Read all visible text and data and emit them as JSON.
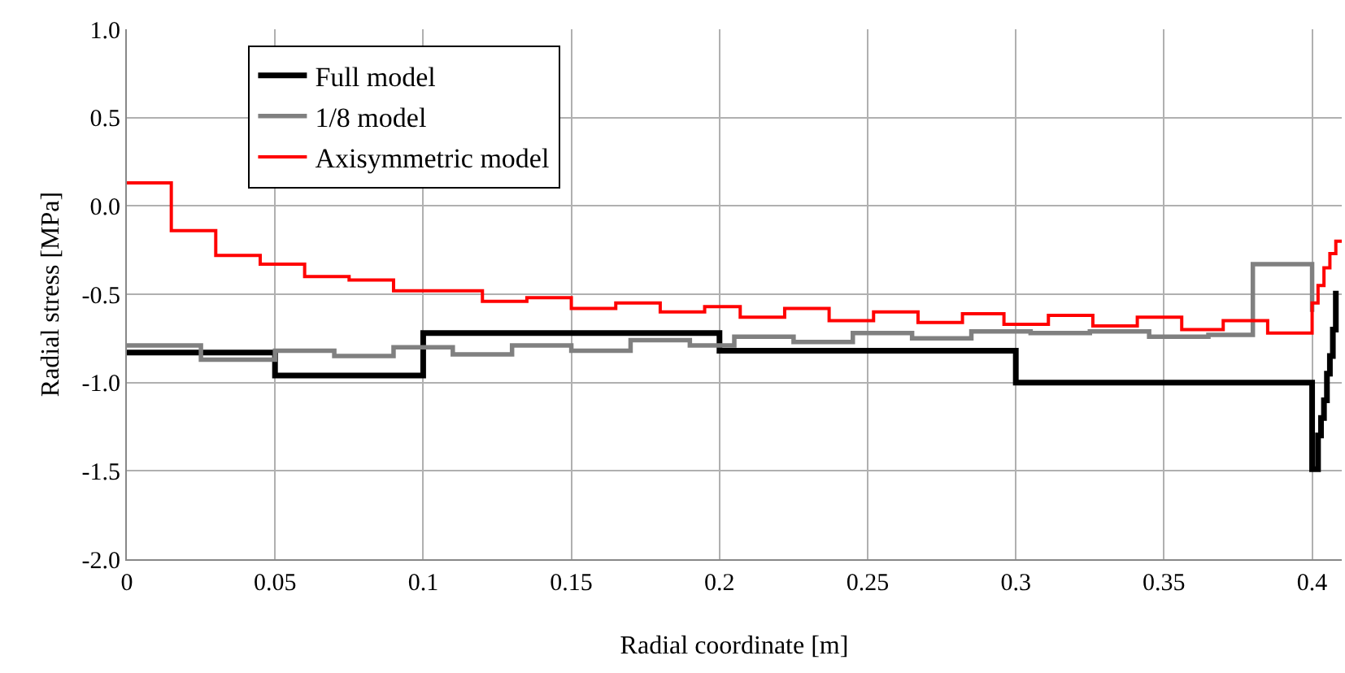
{
  "chart_data": {
    "type": "step",
    "xlabel": "Radial coordinate [m]",
    "ylabel": "Radial stress [MPa]",
    "xlim": [
      0,
      0.41
    ],
    "xticks": [
      0,
      0.05,
      0.1,
      0.15,
      0.2,
      0.25,
      0.3,
      0.35,
      0.4
    ],
    "ylim": [
      -2,
      1
    ],
    "yticks": [
      {
        "value": -2,
        "label": "-2.0"
      },
      {
        "value": -1.5,
        "label": "-1.5"
      },
      {
        "value": -1,
        "label": "-1.0"
      },
      {
        "value": -0.5,
        "label": "-0.5"
      },
      {
        "value": 0,
        "label": "0.0"
      },
      {
        "value": 0.5,
        "label": "0.5"
      },
      {
        "value": 1,
        "label": "1.0"
      }
    ],
    "grid": true,
    "legend": "top left",
    "marker": "none",
    "line_style": "solid",
    "series": [
      {
        "name": "Full model",
        "color": "#000000",
        "x": [
          0,
          0.05,
          0.1,
          0.2,
          0.3,
          0.4,
          0.401,
          0.402,
          0.403,
          0.404,
          0.405,
          0.406,
          0.407,
          0.408
        ],
        "values": [
          -0.83,
          -0.96,
          -0.72,
          -0.82,
          -1.0,
          -1.49,
          -1.49,
          -1.3,
          -1.2,
          -1.1,
          -0.95,
          -0.85,
          -0.7,
          -0.48
        ]
      },
      {
        "name": "1/8 model",
        "color": "#808080",
        "x": [
          0,
          0.025,
          0.05,
          0.07,
          0.09,
          0.11,
          0.13,
          0.15,
          0.17,
          0.19,
          0.205,
          0.225,
          0.245,
          0.265,
          0.285,
          0.305,
          0.325,
          0.345,
          0.365,
          0.38,
          0.4
        ],
        "values": [
          -0.79,
          -0.87,
          -0.82,
          -0.85,
          -0.8,
          -0.84,
          -0.79,
          -0.82,
          -0.76,
          -0.79,
          -0.74,
          -0.77,
          -0.72,
          -0.75,
          -0.71,
          -0.72,
          -0.71,
          -0.74,
          -0.73,
          -0.33,
          -0.6
        ]
      },
      {
        "name": "Axisymmetric model",
        "color": "#ff0000",
        "x": [
          0,
          0.015,
          0.03,
          0.045,
          0.06,
          0.075,
          0.09,
          0.12,
          0.135,
          0.15,
          0.165,
          0.18,
          0.195,
          0.207,
          0.222,
          0.237,
          0.252,
          0.267,
          0.282,
          0.296,
          0.311,
          0.326,
          0.341,
          0.356,
          0.37,
          0.385,
          0.4,
          0.402,
          0.404,
          0.406,
          0.408,
          0.41
        ],
        "values": [
          0.13,
          -0.14,
          -0.28,
          -0.33,
          -0.4,
          -0.42,
          -0.48,
          -0.54,
          -0.52,
          -0.58,
          -0.55,
          -0.6,
          -0.57,
          -0.63,
          -0.58,
          -0.65,
          -0.6,
          -0.66,
          -0.61,
          -0.67,
          -0.62,
          -0.68,
          -0.63,
          -0.7,
          -0.65,
          -0.72,
          -0.55,
          -0.45,
          -0.35,
          -0.27,
          -0.2,
          -0.2
        ]
      }
    ]
  }
}
